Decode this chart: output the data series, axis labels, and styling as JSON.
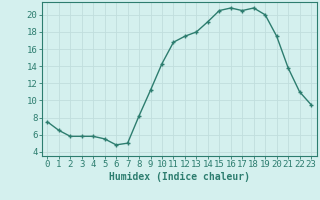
{
  "x": [
    0,
    1,
    2,
    3,
    4,
    5,
    6,
    7,
    8,
    9,
    10,
    11,
    12,
    13,
    14,
    15,
    16,
    17,
    18,
    19,
    20,
    21,
    22,
    23
  ],
  "y": [
    7.5,
    6.5,
    5.8,
    5.8,
    5.8,
    5.5,
    4.8,
    5.0,
    8.2,
    11.2,
    14.3,
    16.8,
    17.5,
    18.0,
    19.2,
    20.5,
    20.8,
    20.5,
    20.8,
    20.0,
    17.5,
    13.8,
    11.0,
    9.5
  ],
  "line_color": "#2d7d6f",
  "marker": "+",
  "bg_color": "#d4f0ee",
  "grid_color": "#c0dedd",
  "xlabel": "Humidex (Indice chaleur)",
  "ylim": [
    3.5,
    21.5
  ],
  "xlim": [
    -0.5,
    23.5
  ],
  "yticks": [
    4,
    6,
    8,
    10,
    12,
    14,
    16,
    18,
    20
  ],
  "xticks": [
    0,
    1,
    2,
    3,
    4,
    5,
    6,
    7,
    8,
    9,
    10,
    11,
    12,
    13,
    14,
    15,
    16,
    17,
    18,
    19,
    20,
    21,
    22,
    23
  ],
  "tick_color": "#2d7d6f",
  "label_fontsize": 7,
  "tick_fontsize": 6.5,
  "spine_color": "#2d7d6f"
}
